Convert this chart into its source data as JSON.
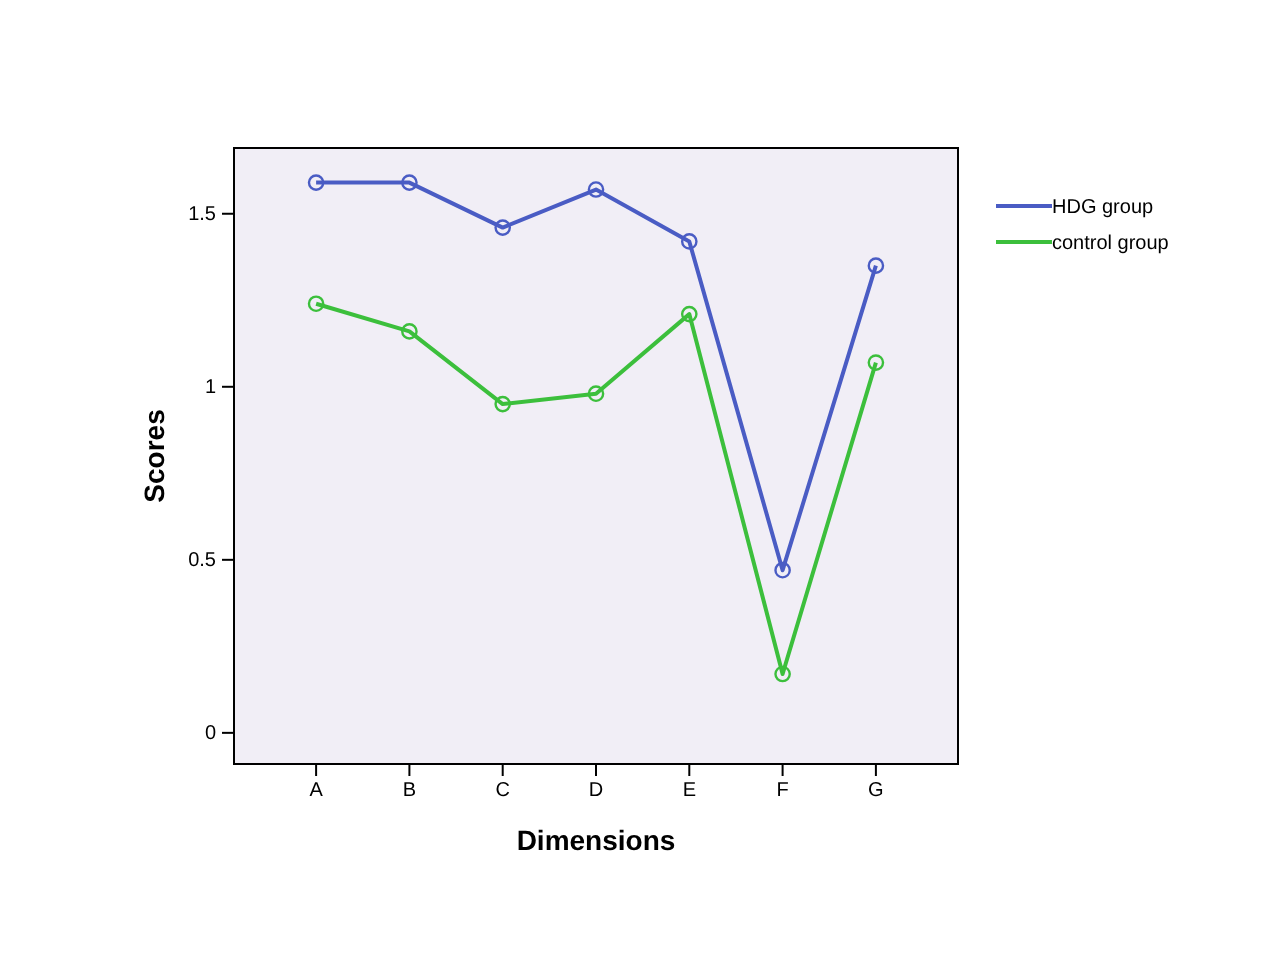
{
  "chart_data": {
    "type": "line",
    "xlabel": "Dimensions",
    "ylabel": "Scores",
    "categories": [
      "A",
      "B",
      "C",
      "D",
      "E",
      "F",
      "G"
    ],
    "series": [
      {
        "name": "HDG group",
        "color": "#4a5cc4",
        "values": [
          1.59,
          1.59,
          1.46,
          1.57,
          1.42,
          0.47,
          1.35
        ]
      },
      {
        "name": "control group",
        "color": "#3cbf3c",
        "values": [
          1.24,
          1.16,
          0.95,
          0.98,
          1.21,
          0.17,
          1.07
        ]
      }
    ],
    "ylim": [
      -0.09,
      1.69
    ],
    "yticks": [
      0,
      {
        "value": 0.5,
        "label": "0.5"
      },
      1,
      {
        "value": 1.5,
        "label": "1.5"
      }
    ],
    "grid": false,
    "legend": "right",
    "marker": "circle",
    "line_style": "solid"
  }
}
